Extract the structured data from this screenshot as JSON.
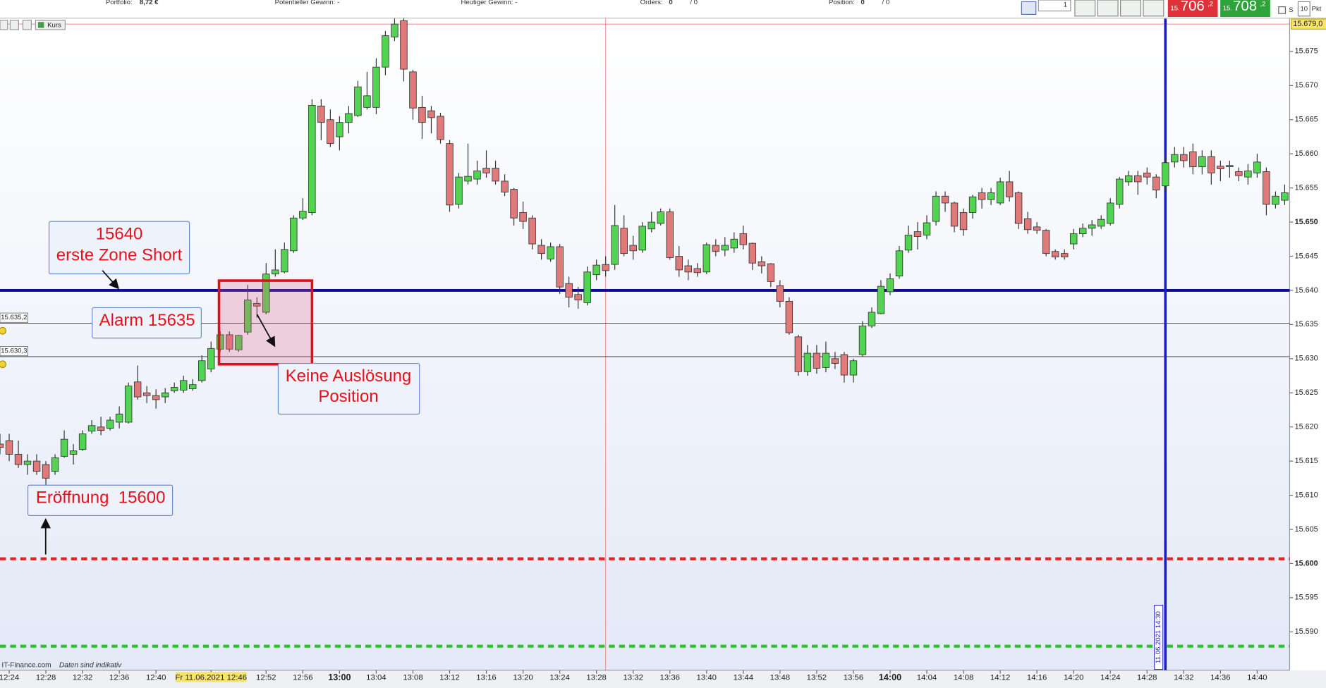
{
  "toolbar": {
    "portfolio_label": "Portfolio:",
    "portfolio_value": "8,72 €",
    "potential": "Potentieller Gewinn: -",
    "today": "Heutiger Gewinn: -",
    "orders_label": "Orders:",
    "orders_value": "0",
    "orders_total": "/ 0",
    "position_label": "Position:",
    "position_value": "0",
    "position_total": "/ 0",
    "quantity": "1",
    "bid": {
      "prefix": "15.",
      "main": "706",
      "suffix": ",2"
    },
    "ask": {
      "prefix": "15.",
      "main": "708",
      "suffix": ",2"
    },
    "s": "S",
    "step": "10",
    "unit": "Pkt"
  },
  "chart_header": {
    "label": "Kurs"
  },
  "footer": {
    "source": "IT-Finance.com",
    "note": "Daten sind indikativ"
  },
  "annotations": {
    "zone": [
      "15640",
      "erste Zone Short"
    ],
    "alarm": "Alarm 15635",
    "no_trigger": [
      "Keine Auslösung",
      "Position"
    ],
    "opening": "Eröffnung  15600"
  },
  "chart_data": {
    "type": "candlestick",
    "up_color": "#52d452",
    "down_color": "#e07a7a",
    "xlim": [
      "12:23",
      "14:44"
    ],
    "ylim": [
      15584.5,
      15679.8
    ],
    "yticks": [
      {
        "value": 15590,
        "label": "15.590"
      },
      {
        "value": 15595,
        "label": "15.595"
      },
      {
        "value": 15600,
        "label": "15.600"
      },
      {
        "value": 15605,
        "label": "15.605"
      },
      {
        "value": 15610,
        "label": "15.610"
      },
      {
        "value": 15615,
        "label": "15.615"
      },
      {
        "value": 15620,
        "label": "15.620"
      },
      {
        "value": 15625,
        "label": "15.625"
      },
      {
        "value": 15630,
        "label": "15.630"
      },
      {
        "value": 15635,
        "label": "15.635"
      },
      {
        "value": 15640,
        "label": "15.640"
      },
      {
        "value": 15645,
        "label": "15.645"
      },
      {
        "value": 15650,
        "label": "15.650"
      },
      {
        "value": 15655,
        "label": "15.655"
      },
      {
        "value": 15660,
        "label": "15.660"
      },
      {
        "value": 15665,
        "label": "15.665"
      },
      {
        "value": 15670,
        "label": "15.670"
      },
      {
        "value": 15675,
        "label": "15.675"
      }
    ],
    "bold_yticks": [
      15600,
      15650
    ],
    "xticks": [
      "12:24",
      "12:28",
      "12:32",
      "12:36",
      "12:40",
      {
        "value": "12:46",
        "label": "Fr 11.06.2021 12:46"
      },
      "12:52",
      "12:56",
      "13:00",
      "13:04",
      "13:08",
      "13:12",
      "13:16",
      "13:20",
      "13:24",
      "13:28",
      "13:32",
      "13:36",
      "13:40",
      "13:44",
      "13:48",
      "13:52",
      "13:56",
      "14:00",
      "14:04",
      "14:08",
      "14:12",
      "14:16",
      "14:20",
      "14:24",
      "14:28",
      "14:32",
      "14:36",
      "14:40"
    ],
    "bold_xticks": [
      "13:00",
      "14:00"
    ],
    "highlight_xtick": "12:46",
    "price_marker": {
      "value": 15679.0,
      "label": "15.679,0",
      "color": "#e06060"
    },
    "lines": [
      {
        "value": 15640,
        "color": "#0a0a96",
        "style": "thick"
      },
      {
        "value": 15635.2,
        "label": "15.635,2",
        "color": "#333333",
        "style": "thin"
      },
      {
        "value": 15630.3,
        "label": "15.630,3",
        "color": "#333333",
        "style": "thin"
      },
      {
        "value": 15600.7,
        "color": "#e8201e",
        "style": "dashed"
      },
      {
        "value": 15587.9,
        "color": "#2cc02c",
        "style": "dashed"
      }
    ],
    "vline": {
      "x": "14:30",
      "label": "11.06.2021 14:30",
      "color": "#1a1ad0"
    },
    "crosshair_x": "13:29",
    "x": [
      "12:23",
      "12:24",
      "12:25",
      "12:26",
      "12:27",
      "12:28",
      "12:29",
      "12:30",
      "12:31",
      "12:32",
      "12:33",
      "12:34",
      "12:35",
      "12:36",
      "12:37",
      "12:38",
      "12:39",
      "12:40",
      "12:41",
      "12:42",
      "12:43",
      "12:44",
      "12:45",
      "12:46",
      "12:47",
      "12:48",
      "12:49",
      "12:50",
      "12:51",
      "12:52",
      "12:53",
      "12:54",
      "12:55",
      "12:56",
      "12:57",
      "12:58",
      "12:59",
      "13:00",
      "13:01",
      "13:02",
      "13:03",
      "13:04",
      "13:05",
      "13:06",
      "13:07",
      "13:08",
      "13:09",
      "13:10",
      "13:11",
      "13:12",
      "13:13",
      "13:14",
      "13:15",
      "13:16",
      "13:17",
      "13:18",
      "13:19",
      "13:20",
      "13:21",
      "13:22",
      "13:23",
      "13:24",
      "13:25",
      "13:26",
      "13:27",
      "13:28",
      "13:29",
      "13:30",
      "13:31",
      "13:32",
      "13:33",
      "13:34",
      "13:35",
      "13:36",
      "13:37",
      "13:38",
      "13:39",
      "13:40",
      "13:41",
      "13:42",
      "13:43",
      "13:44",
      "13:45",
      "13:46",
      "13:47",
      "13:48",
      "13:49",
      "13:50",
      "13:51",
      "13:52",
      "13:53",
      "13:54",
      "13:55",
      "13:56",
      "13:57",
      "13:58",
      "13:59",
      "14:00",
      "14:01",
      "14:02",
      "14:03",
      "14:04",
      "14:05",
      "14:06",
      "14:07",
      "14:08",
      "14:09",
      "14:10",
      "14:11",
      "14:12",
      "14:13",
      "14:14",
      "14:15",
      "14:16",
      "14:17",
      "14:18",
      "14:19",
      "14:20",
      "14:21",
      "14:22",
      "14:23",
      "14:24",
      "14:25",
      "14:26",
      "14:27",
      "14:28",
      "14:29",
      "14:30",
      "14:31",
      "14:32",
      "14:33",
      "14:34",
      "14:35",
      "14:36",
      "14:37",
      "14:38",
      "14:39",
      "14:40",
      "14:41",
      "14:42",
      "14:43"
    ],
    "values": [
      [
        15617.5,
        15619,
        15616,
        15617
      ],
      [
        15618,
        15619,
        15615,
        15616
      ],
      [
        15616,
        15618,
        15614,
        15614.5
      ],
      [
        15614.5,
        15616,
        15613,
        15615
      ],
      [
        15615,
        15616,
        15613,
        15613.5
      ],
      [
        15614.5,
        15615,
        15611.5,
        15612.5
      ],
      [
        15613.5,
        15616,
        15613,
        15615.5
      ],
      [
        15615.7,
        15619.5,
        15615.5,
        15618.2
      ],
      [
        15616,
        15617.5,
        15614.5,
        15616.5
      ],
      [
        15616.7,
        15619.5,
        15616.5,
        15619
      ],
      [
        15619.4,
        15621,
        15619,
        15620.2
      ],
      [
        15620,
        15621.5,
        15618.8,
        15619.5
      ],
      [
        15619.8,
        15621.5,
        15619.5,
        15621
      ],
      [
        15620.7,
        15623,
        15619.8,
        15621.9
      ],
      [
        15620.7,
        15626.5,
        15620.5,
        15626
      ],
      [
        15626.6,
        15629,
        15624,
        15624.4
      ],
      [
        15625,
        15626,
        15623.5,
        15624.6
      ],
      [
        15624.6,
        15625.5,
        15622.7,
        15624
      ],
      [
        15624.4,
        15625.7,
        15623.5,
        15625
      ],
      [
        15625.3,
        15626.5,
        15625,
        15625.8
      ],
      [
        15625.4,
        15627.5,
        15625,
        15626.8
      ],
      [
        15625.6,
        15627,
        15625.3,
        15626.2
      ],
      [
        15626.8,
        15630.5,
        15626.5,
        15629.7
      ],
      [
        15628.5,
        15632.5,
        15628,
        15631.5
      ],
      [
        15631.4,
        15634,
        15631,
        15633.5
      ],
      [
        15633.5,
        15634,
        15631,
        15631.4
      ],
      [
        15631.3,
        15633.5,
        15631,
        15633.4
      ],
      [
        15633.9,
        15640.8,
        15633.5,
        15638.6
      ],
      [
        15638.1,
        15639,
        15636,
        15637.7
      ],
      [
        15636.8,
        15644,
        15636.5,
        15642.4
      ],
      [
        15642.4,
        15646,
        15642,
        15643
      ],
      [
        15642.7,
        15647,
        15642.5,
        15646
      ],
      [
        15645.8,
        15651,
        15645.5,
        15650.6
      ],
      [
        15650.6,
        15653.5,
        15650.3,
        15651.6
      ],
      [
        15651.4,
        15668,
        15651,
        15667.1
      ],
      [
        15667,
        15668,
        15662,
        15664.6
      ],
      [
        15665,
        15666.5,
        15661,
        15661.5
      ],
      [
        15662.5,
        15665.5,
        15660.5,
        15664.6
      ],
      [
        15664.6,
        15667,
        15663,
        15665.9
      ],
      [
        15665.6,
        15670.7,
        15665.4,
        15669.8
      ],
      [
        15666.8,
        15672,
        15666.5,
        15668.5
      ],
      [
        15666.8,
        15674,
        15665.8,
        15672.7
      ],
      [
        15672.7,
        15678,
        15671.5,
        15677.3
      ],
      [
        15677.1,
        15680,
        15676.5,
        15679
      ],
      [
        15679.5,
        15680,
        15670.6,
        15672.4
      ],
      [
        15672,
        15672.3,
        15665,
        15666.7
      ],
      [
        15666.8,
        15668.5,
        15662.2,
        15664.6
      ],
      [
        15666.3,
        15667,
        15663,
        15665.3
      ],
      [
        15665.5,
        15666,
        15661.5,
        15662.1
      ],
      [
        15661.5,
        15662,
        15651.5,
        15652.5
      ],
      [
        15652.6,
        15657.2,
        15652,
        15656.6
      ],
      [
        15656,
        15661.5,
        15655.5,
        15656.7
      ],
      [
        15656.3,
        15659,
        15655.5,
        15657.5
      ],
      [
        15657.9,
        15660.5,
        15656.5,
        15657.2
      ],
      [
        15657.9,
        15659,
        15655.5,
        15656
      ],
      [
        15656,
        15657,
        15653.8,
        15654.4
      ],
      [
        15654.8,
        15655,
        15649.5,
        15650.6
      ],
      [
        15651.4,
        15653,
        15649,
        15650.1
      ],
      [
        15650.6,
        15651,
        15646,
        15646.8
      ],
      [
        15646.6,
        15647.5,
        15644.5,
        15645.4
      ],
      [
        15644.6,
        15647,
        15644.2,
        15646.4
      ],
      [
        15646.4,
        15646.8,
        15639.5,
        15640.5
      ],
      [
        15641,
        15642,
        15637.5,
        15639
      ],
      [
        15639.4,
        15640.5,
        15637.3,
        15638.6
      ],
      [
        15638.2,
        15643.5,
        15637.8,
        15642.7
      ],
      [
        15642.3,
        15644.5,
        15641.5,
        15643.7
      ],
      [
        15643.8,
        15645,
        15642,
        15642.9
      ],
      [
        15643.8,
        15652.5,
        15643,
        15649.5
      ],
      [
        15649.1,
        15651,
        15645,
        15645.4
      ],
      [
        15646.6,
        15648,
        15644.5,
        15645.8
      ],
      [
        15645.9,
        15650,
        15645.5,
        15649.4
      ],
      [
        15649,
        15651.5,
        15648.5,
        15650
      ],
      [
        15649.8,
        15652,
        15649.5,
        15651.5
      ],
      [
        15651.5,
        15652,
        15644.5,
        15644.8
      ],
      [
        15645,
        15646.5,
        15642,
        15643
      ],
      [
        15643.6,
        15644.5,
        15641.5,
        15642.7
      ],
      [
        15643.2,
        15644,
        15642,
        15642.6
      ],
      [
        15642.7,
        15647,
        15642.4,
        15646.7
      ],
      [
        15646.6,
        15647.5,
        15645,
        15645.7
      ],
      [
        15645.9,
        15647.8,
        15645,
        15646.6
      ],
      [
        15646.2,
        15648.5,
        15645.5,
        15647.5
      ],
      [
        15648.3,
        15649.5,
        15646,
        15646.7
      ],
      [
        15646.9,
        15647,
        15643,
        15644
      ],
      [
        15644.2,
        15645,
        15642.5,
        15643.6
      ],
      [
        15643.9,
        15644,
        15640.5,
        15641.3
      ],
      [
        15640.7,
        15641.5,
        15637.5,
        15638.4
      ],
      [
        15638.4,
        15639,
        15633.5,
        15633.8
      ],
      [
        15633.2,
        15633.5,
        15627.5,
        15628.1
      ],
      [
        15628.1,
        15632,
        15627.5,
        15630.8
      ],
      [
        15630.8,
        15632,
        15627.8,
        15628.6
      ],
      [
        15628.7,
        15632.5,
        15628,
        15630.8
      ],
      [
        15630,
        15631,
        15628.5,
        15629.3
      ],
      [
        15630.6,
        15631,
        15626.5,
        15627.6
      ],
      [
        15627.6,
        15630,
        15626.5,
        15629.7
      ],
      [
        15630.6,
        15635.5,
        15630.3,
        15634.8
      ],
      [
        15634.8,
        15637.5,
        15634.5,
        15636.8
      ],
      [
        15636.6,
        15641.5,
        15636.5,
        15640.6
      ],
      [
        15639.8,
        15642.5,
        15639.3,
        15641.7
      ],
      [
        15642.1,
        15646.5,
        15641.7,
        15645.8
      ],
      [
        15645.9,
        15649.5,
        15645.5,
        15648.1
      ],
      [
        15648.6,
        15650,
        15646,
        15647.9
      ],
      [
        15648.1,
        15651,
        15647.5,
        15649.9
      ],
      [
        15650.1,
        15654.5,
        15649.5,
        15653.8
      ],
      [
        15653.8,
        15654.5,
        15651.5,
        15652.8
      ],
      [
        15652.8,
        15653,
        15648.5,
        15649.4
      ],
      [
        15651.4,
        15652,
        15648,
        15648.9
      ],
      [
        15651.4,
        15654,
        15650.5,
        15653.7
      ],
      [
        15654.3,
        15655,
        15652,
        15653.3
      ],
      [
        15653.3,
        15655,
        15652.5,
        15654.3
      ],
      [
        15652.8,
        15656.5,
        15652.5,
        15655.9
      ],
      [
        15655.9,
        15657.5,
        15653,
        15653.7
      ],
      [
        15654.3,
        15654.5,
        15649,
        15649.8
      ],
      [
        15650.5,
        15651.5,
        15648.3,
        15648.9
      ],
      [
        15649.3,
        15650,
        15648.3,
        15648.8
      ],
      [
        15648.8,
        15649,
        15645,
        15645.4
      ],
      [
        15645.7,
        15646,
        15644.5,
        15644.9
      ],
      [
        15645.4,
        15646,
        15644.5,
        15644.9
      ],
      [
        15646.8,
        15649,
        15646,
        15648.3
      ],
      [
        15648.3,
        15649.8,
        15647.8,
        15649.1
      ],
      [
        15649.1,
        15650.3,
        15648,
        15649.6
      ],
      [
        15649.4,
        15651,
        15649,
        15650.4
      ],
      [
        15649.8,
        15653.5,
        15649.5,
        15652.8
      ],
      [
        15652.6,
        15656.6,
        15652,
        15656.3
      ],
      [
        15655.9,
        15657.5,
        15655.3,
        15656.8
      ],
      [
        15656.8,
        15657.5,
        15654,
        15655.9
      ],
      [
        15657.2,
        15658,
        15655.5,
        15656.6
      ],
      [
        15656.6,
        15657,
        15653.5,
        15654.7
      ],
      [
        15655.3,
        15659.5,
        15654.5,
        15658.7
      ],
      [
        15658.8,
        15661,
        15658,
        15659.9
      ],
      [
        15659.9,
        15661,
        15658,
        15659
      ],
      [
        15660.3,
        15661.5,
        15657,
        15658.1
      ],
      [
        15658.1,
        15660.5,
        15657,
        15659.6
      ],
      [
        15659.6,
        15660.5,
        15655.5,
        15657.2
      ],
      [
        15658.2,
        15659,
        15656,
        15657.8
      ],
      [
        15658.1,
        15659,
        15656.5,
        15658.3
      ],
      [
        15657.4,
        15658,
        15656,
        15656.8
      ],
      [
        15656.6,
        15658.5,
        15655.5,
        15657.5
      ],
      [
        15657.2,
        15660,
        15656.5,
        15658.8
      ],
      [
        15657.4,
        15658,
        15651,
        15652.6
      ],
      [
        15652.6,
        15654.5,
        15652,
        15653.8
      ],
      [
        15653.2,
        15655.5,
        15652.5,
        15654.3
      ]
    ]
  }
}
